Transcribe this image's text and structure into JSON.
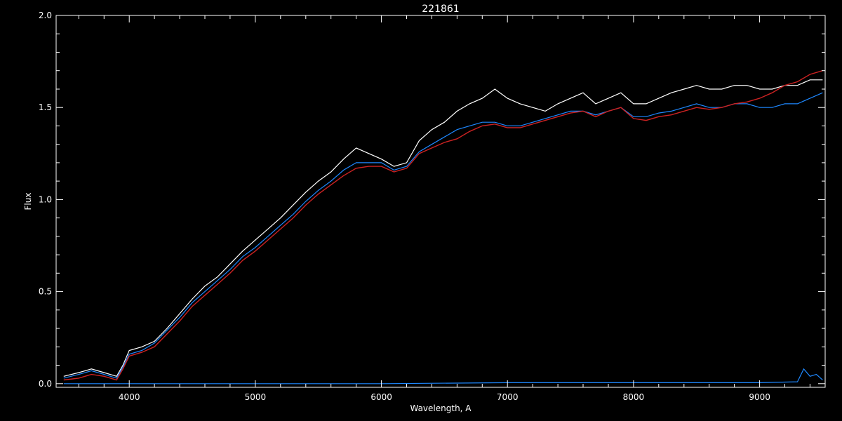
{
  "chart_data": {
    "type": "line",
    "title": "221861",
    "xlabel": "Wavelength, A",
    "ylabel": "Flux",
    "xlim": [
      3420,
      9520
    ],
    "ylim": [
      -0.02,
      2.0
    ],
    "xticks": [
      4000,
      5000,
      6000,
      7000,
      8000,
      9000
    ],
    "xtick_labels": [
      "4000",
      "5000",
      "6000",
      "7000",
      "8000",
      "9000"
    ],
    "yticks": [
      0.0,
      0.5,
      1.0,
      1.5,
      2.0
    ],
    "ytick_labels": [
      "0.0",
      "0.5",
      "1.0",
      "1.5",
      "2.0"
    ],
    "grid": false,
    "series": [
      {
        "color": "#ffffff",
        "x": [
          3480,
          3600,
          3700,
          3800,
          3900,
          3950,
          4000,
          4100,
          4200,
          4300,
          4400,
          4500,
          4600,
          4700,
          4800,
          4900,
          5000,
          5100,
          5200,
          5300,
          5400,
          5500,
          5600,
          5700,
          5800,
          5900,
          6000,
          6100,
          6200,
          6300,
          6400,
          6500,
          6600,
          6700,
          6800,
          6900,
          7000,
          7100,
          7200,
          7300,
          7400,
          7500,
          7600,
          7700,
          7800,
          7900,
          8000,
          8100,
          8200,
          8300,
          8400,
          8500,
          8600,
          8700,
          8800,
          8900,
          9000,
          9100,
          9200,
          9300,
          9400,
          9500
        ],
        "y": [
          0.04,
          0.06,
          0.08,
          0.06,
          0.04,
          0.1,
          0.18,
          0.2,
          0.23,
          0.3,
          0.38,
          0.46,
          0.53,
          0.58,
          0.65,
          0.72,
          0.78,
          0.84,
          0.9,
          0.97,
          1.04,
          1.1,
          1.15,
          1.22,
          1.28,
          1.25,
          1.22,
          1.18,
          1.2,
          1.32,
          1.38,
          1.42,
          1.48,
          1.52,
          1.55,
          1.6,
          1.55,
          1.52,
          1.5,
          1.48,
          1.52,
          1.55,
          1.58,
          1.52,
          1.55,
          1.58,
          1.52,
          1.52,
          1.55,
          1.58,
          1.6,
          1.62,
          1.6,
          1.6,
          1.62,
          1.62,
          1.6,
          1.6,
          1.62,
          1.62,
          1.65,
          1.65
        ]
      },
      {
        "color": "#1e88ff",
        "x": [
          3480,
          3600,
          3700,
          3800,
          3900,
          3950,
          4000,
          4100,
          4200,
          4300,
          4400,
          4500,
          4600,
          4700,
          4800,
          4900,
          5000,
          5100,
          5200,
          5300,
          5400,
          5500,
          5600,
          5700,
          5800,
          5900,
          6000,
          6100,
          6200,
          6300,
          6400,
          6500,
          6600,
          6700,
          6800,
          6900,
          7000,
          7100,
          7200,
          7300,
          7400,
          7500,
          7600,
          7700,
          7800,
          7900,
          8000,
          8100,
          8200,
          8300,
          8400,
          8500,
          8600,
          8700,
          8800,
          8900,
          9000,
          9100,
          9200,
          9300,
          9400,
          9500
        ],
        "y": [
          0.03,
          0.05,
          0.07,
          0.05,
          0.03,
          0.09,
          0.16,
          0.18,
          0.22,
          0.29,
          0.36,
          0.44,
          0.5,
          0.56,
          0.62,
          0.69,
          0.74,
          0.8,
          0.86,
          0.92,
          0.99,
          1.05,
          1.1,
          1.16,
          1.2,
          1.2,
          1.2,
          1.16,
          1.18,
          1.26,
          1.3,
          1.34,
          1.38,
          1.4,
          1.42,
          1.42,
          1.4,
          1.4,
          1.42,
          1.44,
          1.46,
          1.48,
          1.48,
          1.46,
          1.48,
          1.5,
          1.45,
          1.45,
          1.47,
          1.48,
          1.5,
          1.52,
          1.5,
          1.5,
          1.52,
          1.52,
          1.5,
          1.5,
          1.52,
          1.52,
          1.55,
          1.58
        ]
      },
      {
        "color": "#cc2222",
        "x": [
          3480,
          3600,
          3700,
          3800,
          3900,
          3950,
          4000,
          4100,
          4200,
          4300,
          4400,
          4500,
          4600,
          4700,
          4800,
          4900,
          5000,
          5100,
          5200,
          5300,
          5400,
          5500,
          5600,
          5700,
          5800,
          5900,
          6000,
          6100,
          6200,
          6300,
          6400,
          6500,
          6600,
          6700,
          6800,
          6900,
          7000,
          7100,
          7200,
          7300,
          7400,
          7500,
          7600,
          7700,
          7800,
          7900,
          8000,
          8100,
          8200,
          8300,
          8400,
          8500,
          8600,
          8700,
          8800,
          8900,
          9000,
          9100,
          9200,
          9300,
          9400,
          9500
        ],
        "y": [
          0.02,
          0.03,
          0.05,
          0.04,
          0.02,
          0.08,
          0.15,
          0.17,
          0.2,
          0.27,
          0.34,
          0.42,
          0.48,
          0.54,
          0.6,
          0.67,
          0.72,
          0.78,
          0.84,
          0.9,
          0.97,
          1.03,
          1.08,
          1.13,
          1.17,
          1.18,
          1.18,
          1.15,
          1.17,
          1.25,
          1.28,
          1.31,
          1.33,
          1.37,
          1.4,
          1.41,
          1.39,
          1.39,
          1.41,
          1.43,
          1.45,
          1.47,
          1.48,
          1.45,
          1.48,
          1.5,
          1.44,
          1.43,
          1.45,
          1.46,
          1.48,
          1.5,
          1.49,
          1.5,
          1.52,
          1.53,
          1.55,
          1.58,
          1.62,
          1.64,
          1.68,
          1.7
        ]
      },
      {
        "color": "#1e88ff",
        "x": [
          3480,
          4000,
          5000,
          6000,
          7000,
          8000,
          9000,
          9300,
          9350,
          9400,
          9450,
          9500
        ],
        "y": [
          0.0,
          0.0,
          0.0,
          0.0,
          0.005,
          0.005,
          0.005,
          0.01,
          0.08,
          0.04,
          0.05,
          0.02
        ]
      }
    ]
  }
}
